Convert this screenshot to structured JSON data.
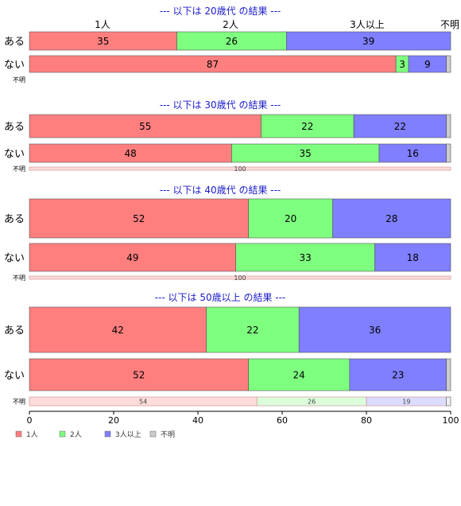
{
  "colors": {
    "one": "#ff7f7f",
    "two": "#7fff7f",
    "three": "#7f7fff",
    "unknown": "#cccccc",
    "title": "#1a1acc"
  },
  "chart_data": {
    "type": "bar",
    "orientation": "horizontal-stacked-percent",
    "xlim": [
      0,
      100
    ],
    "xticks": [
      "0",
      "20",
      "40",
      "60",
      "80",
      "100"
    ],
    "header_labels": [
      "1人",
      "2人",
      "3人以上",
      "不明"
    ],
    "legend": {
      "placement": "bottom-left",
      "items": [
        {
          "name": "1人",
          "color": "#ff7f7f"
        },
        {
          "name": "2人",
          "color": "#7fff7f"
        },
        {
          "name": "3人以上",
          "color": "#7f7fff"
        },
        {
          "name": "不明",
          "color": "#cccccc"
        }
      ]
    },
    "groups": [
      {
        "title": "--- 以下は 20歳代 の結果 ---",
        "rows": [
          {
            "label": "ある",
            "values": [
              35,
              26,
              39,
              0
            ],
            "labels": [
              "35",
              "26",
              "39",
              ""
            ]
          },
          {
            "label": "ない",
            "values": [
              87,
              3,
              9,
              0
            ],
            "labels": [
              "87",
              "3",
              "9",
              ""
            ]
          },
          {
            "label": "不明",
            "values": [],
            "labels": []
          }
        ]
      },
      {
        "title": "--- 以下は 30歳代 の結果 ---",
        "rows": [
          {
            "label": "ある",
            "values": [
              55,
              22,
              22,
              0
            ],
            "labels": [
              "55",
              "22",
              "22",
              ""
            ]
          },
          {
            "label": "ない",
            "values": [
              48,
              35,
              16,
              0
            ],
            "labels": [
              "48",
              "35",
              "16",
              ""
            ]
          },
          {
            "label": "不明",
            "values": [
              100,
              0,
              0,
              0
            ],
            "labels": [
              "100",
              "",
              "",
              ""
            ]
          }
        ]
      },
      {
        "title": "--- 以下は 40歳代 の結果 ---",
        "rows": [
          {
            "label": "ある",
            "values": [
              52,
              20,
              28,
              0
            ],
            "labels": [
              "52",
              "20",
              "28",
              ""
            ]
          },
          {
            "label": "ない",
            "values": [
              49,
              33,
              18,
              0
            ],
            "labels": [
              "49",
              "33",
              "18",
              ""
            ]
          },
          {
            "label": "不明",
            "values": [
              100,
              0,
              0,
              0
            ],
            "labels": [
              "100",
              "",
              "",
              ""
            ]
          }
        ]
      },
      {
        "title": "--- 以下は 50歳以上 の結果 ---",
        "rows": [
          {
            "label": "ある",
            "values": [
              42,
              22,
              36,
              0
            ],
            "labels": [
              "42",
              "22",
              "36",
              ""
            ]
          },
          {
            "label": "ない",
            "values": [
              52,
              24,
              23,
              0
            ],
            "labels": [
              "52",
              "24",
              "23",
              ""
            ]
          },
          {
            "label": "不明",
            "values": [
              54,
              26,
              19,
              0
            ],
            "labels": [
              "54",
              "26",
              "19",
              ""
            ]
          }
        ]
      }
    ]
  }
}
